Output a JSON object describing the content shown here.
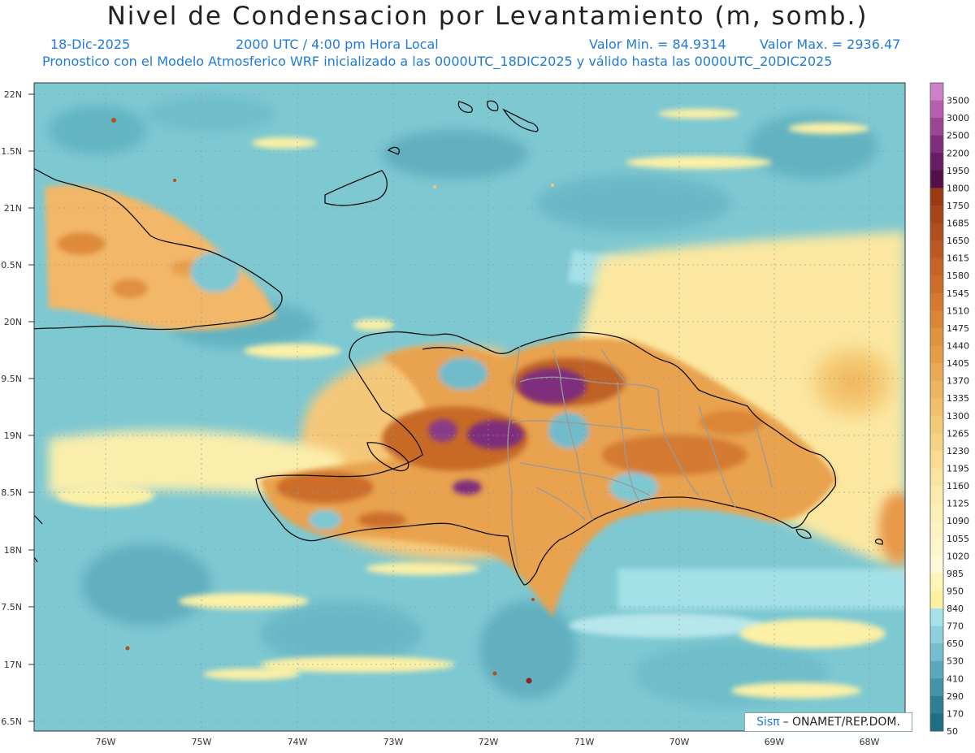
{
  "title": "Nivel de Condensacion por Levantamiento (m, somb.)",
  "date": "18-Dic-2025",
  "time": "2000 UTC / 4:00 pm Hora Local",
  "min_label": "Valor Min. = 84.9314",
  "max_label": "Valor Max. = 2936.47",
  "forecast_line": "Pronostico con el Modelo Atmosferico WRF inicializado a las 0000UTC_18DIC2025 y válido hasta las  0000UTC_20DIC2025",
  "lat_labels": [
    "22N",
    "1.5N",
    "21N",
    "0.5N",
    "20N",
    "9.5N",
    "19N",
    "8.5N",
    "18N",
    "7.5N",
    "17N",
    "6.5N"
  ],
  "lon_labels": [
    "76W",
    "75W",
    "74W",
    "73W",
    "72W",
    "71W",
    "70W",
    "69W",
    "68W"
  ],
  "colorbar": {
    "labels": [
      "3500",
      "3000",
      "2500",
      "2200",
      "1950",
      "1800",
      "1750",
      "1685",
      "1650",
      "1615",
      "1580",
      "1545",
      "1510",
      "1475",
      "1440",
      "1405",
      "1370",
      "1335",
      "1300",
      "1265",
      "1230",
      "1195",
      "1160",
      "1125",
      "1090",
      "1055",
      "1020",
      "985",
      "950",
      "840",
      "770",
      "650",
      "530",
      "410",
      "290",
      "170",
      "50"
    ],
    "colors": [
      "#cc80c8",
      "#b65fb0",
      "#9a4694",
      "#7e2e7c",
      "#661d63",
      "#541048",
      "#9a3a12",
      "#a6451a",
      "#b04f1e",
      "#ba5a22",
      "#c46426",
      "#cc6e2a",
      "#d47a30",
      "#db8636",
      "#e0923e",
      "#e59e48",
      "#e9aa54",
      "#edb560",
      "#f0c06c",
      "#f3ca78",
      "#f5d384",
      "#f7dc92",
      "#f9e4a0",
      "#faeaac",
      "#fbefb8",
      "#fcf3c2",
      "#fcf6cc",
      "#fdf8d6",
      "#fdf6b8",
      "#fdf0a0",
      "#a6e2ea",
      "#8ed0dc",
      "#75bece",
      "#5aa9bc",
      "#4394aa",
      "#2e7f96",
      "#1e6e86"
    ]
  },
  "credit_logo": "Sisπ",
  "credit_text": "– ONAMET/REP.DOM."
}
